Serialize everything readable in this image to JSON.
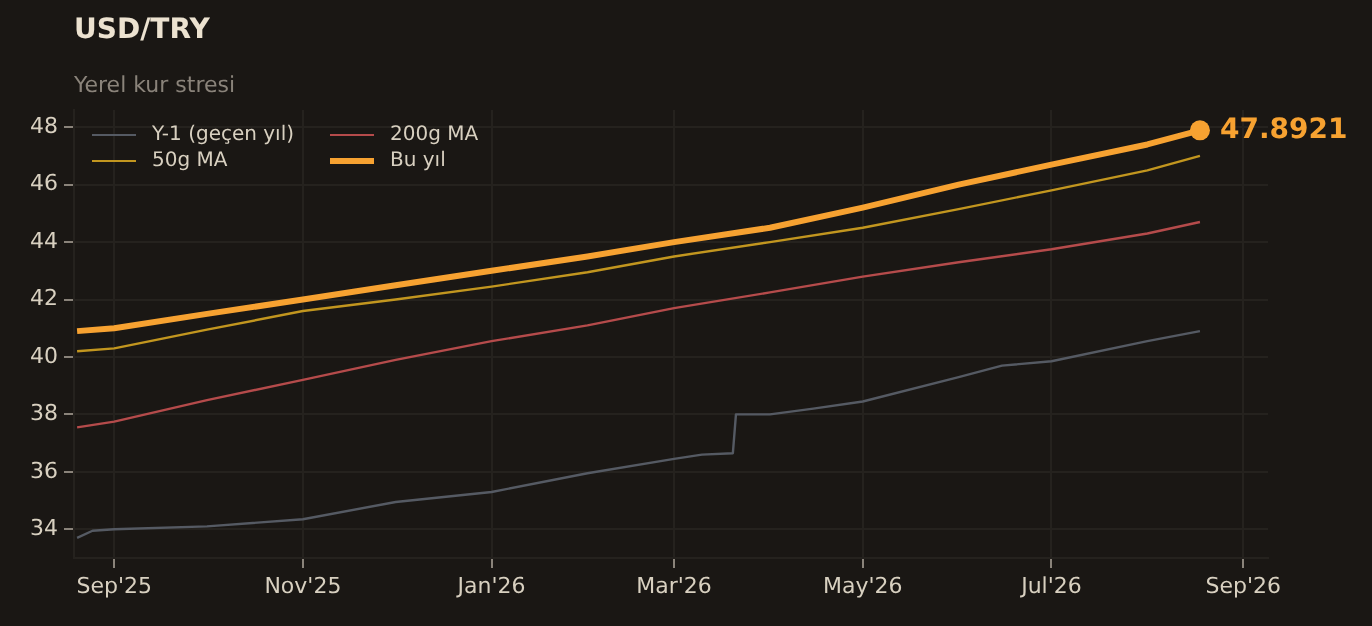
{
  "chart_data": {
    "type": "line",
    "title": "USD/TRY",
    "subtitle": "Yerel kur stresi",
    "x": [
      "2025-08-20",
      "2025-09-01",
      "2025-10-01",
      "2025-11-01",
      "2025-12-01",
      "2026-01-01",
      "2026-02-01",
      "2026-03-01",
      "2026-04-01",
      "2026-05-01",
      "2026-06-01",
      "2026-07-01",
      "2026-08-01",
      "2026-08-18"
    ],
    "series": [
      {
        "name": "Y-1 (geçen yıl)",
        "color": "#555a63",
        "x": [
          "2025-08-20",
          "2025-08-25",
          "2025-09-01",
          "2025-10-01",
          "2025-11-01",
          "2025-12-01",
          "2026-01-01",
          "2026-02-01",
          "2026-03-01",
          "2026-03-10",
          "2026-03-20",
          "2026-03-21",
          "2026-04-01",
          "2026-04-15",
          "2026-05-01",
          "2026-06-01",
          "2026-06-15",
          "2026-07-01",
          "2026-08-01",
          "2026-08-18"
        ],
        "values": [
          33.7,
          33.95,
          34.0,
          34.1,
          34.35,
          34.95,
          35.3,
          35.95,
          36.45,
          36.6,
          36.65,
          38.0,
          38.0,
          38.2,
          38.45,
          39.3,
          39.7,
          39.85,
          40.55,
          40.9
        ]
      },
      {
        "name": "50g MA",
        "color": "#c2961f",
        "values": [
          40.2,
          40.3,
          40.95,
          41.6,
          42.0,
          42.45,
          42.95,
          43.5,
          44.0,
          44.5,
          45.15,
          45.8,
          46.5,
          47.0
        ]
      },
      {
        "name": "200g MA",
        "color": "#b54b4b",
        "values": [
          37.55,
          37.75,
          38.5,
          39.2,
          39.9,
          40.55,
          41.1,
          41.7,
          42.25,
          42.8,
          43.3,
          43.75,
          44.3,
          44.7
        ]
      },
      {
        "name": "Bu yıl",
        "color": "#f7a231",
        "values": [
          40.9,
          41.0,
          41.5,
          42.0,
          42.5,
          43.0,
          43.5,
          44.0,
          44.5,
          45.2,
          46.0,
          46.7,
          47.4,
          47.8921
        ]
      }
    ],
    "xlim": [
      "2025-08-19",
      "2026-09-09"
    ],
    "xticks": [
      {
        "value": "2025-09-01",
        "label": "Sep'25"
      },
      {
        "value": "2025-11-01",
        "label": "Nov'25"
      },
      {
        "value": "2026-01-01",
        "label": "Jan'26"
      },
      {
        "value": "2026-03-01",
        "label": "Mar'26"
      },
      {
        "value": "2026-05-01",
        "label": "May'26"
      },
      {
        "value": "2026-07-01",
        "label": "Jul'26"
      },
      {
        "value": "2026-09-01",
        "label": "Sep'26"
      }
    ],
    "ylim": [
      33,
      48.6
    ],
    "yticks": [
      34,
      36,
      38,
      40,
      42,
      44,
      46,
      48
    ],
    "annotations": [
      {
        "text": "47.8921",
        "x": "2026-08-18",
        "y": 47.8921
      }
    ],
    "grid": true,
    "legend": "top left",
    "marker": "none",
    "line_style": "solid"
  }
}
